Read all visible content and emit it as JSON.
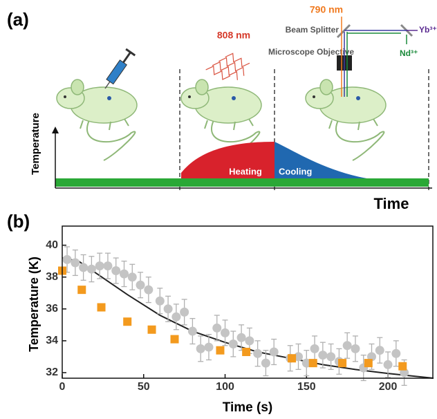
{
  "panels": [
    "(a)",
    "(b)"
  ],
  "diagram": {
    "laser1": "808 nm",
    "laser2": "790 nm",
    "splitter": "Beam Splitter",
    "objective": "Microscope Objective",
    "yb": "Yb³⁺",
    "nd": "Nd³⁺",
    "ylabel": "Temperature",
    "xlabel": "Time",
    "heating": "Heating",
    "cooling": "Cooling"
  },
  "chart_data": {
    "type": "scatter",
    "xlabel": "Time (s)",
    "ylabel": "Temperature  (K)",
    "xlim": [
      0,
      228
    ],
    "ylim": [
      31.65,
      41.2
    ],
    "xticks": [
      0,
      50,
      100,
      150,
      200
    ],
    "yticks": [
      32,
      34,
      36,
      38,
      40
    ],
    "series": [
      {
        "marker": "circle",
        "color": "#c4c4c4",
        "error": 0.8,
        "x": [
          3,
          8,
          13,
          18,
          23,
          28,
          33,
          38,
          43,
          48,
          53,
          60,
          65,
          70,
          75,
          80,
          85,
          90,
          95,
          100,
          105,
          110,
          115,
          120,
          125,
          130,
          140,
          145,
          150,
          155,
          160,
          165,
          170,
          175,
          180,
          185,
          190,
          195,
          200,
          205,
          210
        ],
        "values": [
          39.1,
          38.9,
          38.6,
          38.5,
          38.7,
          38.7,
          38.4,
          38.2,
          38.0,
          37.5,
          37.2,
          36.5,
          36.0,
          35.5,
          35.8,
          34.6,
          33.5,
          33.6,
          34.8,
          34.5,
          33.8,
          34.2,
          34.0,
          33.2,
          32.6,
          33.3,
          32.9,
          33.0,
          32.6,
          33.5,
          33.1,
          33.0,
          32.7,
          33.7,
          33.5,
          32.3,
          33.0,
          33.4,
          32.5,
          33.2,
          32.0
        ]
      },
      {
        "marker": "square",
        "color": "#f39a1e",
        "x": [
          0,
          12,
          24,
          40,
          55,
          69,
          97,
          113,
          141,
          154,
          172,
          188,
          209
        ],
        "values": [
          38.4,
          37.2,
          36.1,
          35.2,
          34.7,
          34.1,
          33.4,
          33.3,
          32.9,
          32.6,
          32.6,
          32.6,
          32.4
        ]
      },
      {
        "marker": "line",
        "color": "#222222",
        "x": [
          0,
          10,
          20,
          40,
          60,
          80,
          100,
          120,
          140,
          160,
          180,
          200,
          228
        ],
        "values": [
          39.2,
          39.0,
          38.3,
          36.9,
          35.6,
          34.6,
          33.9,
          33.3,
          32.9,
          32.5,
          32.2,
          31.95,
          31.65
        ]
      }
    ]
  }
}
